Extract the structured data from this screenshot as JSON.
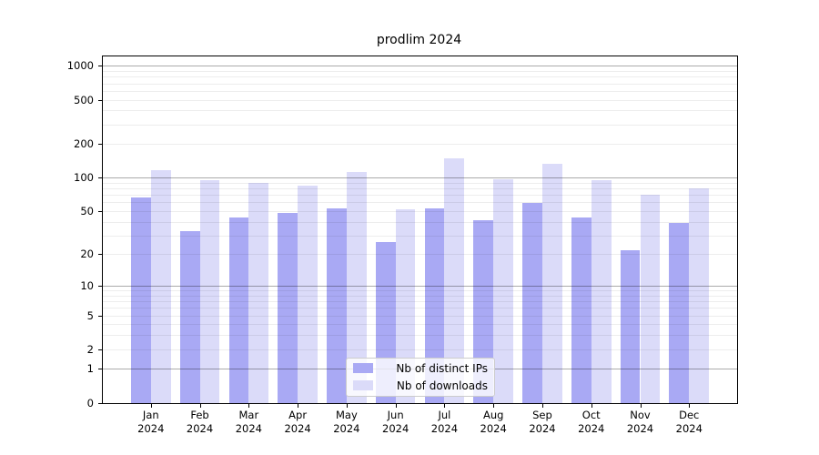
{
  "chart_data": {
    "type": "bar",
    "title": "prodlim 2024",
    "categories": [
      "Jan 2024",
      "Feb 2024",
      "Mar 2024",
      "Apr 2024",
      "May 2024",
      "Jun 2024",
      "Jul 2024",
      "Aug 2024",
      "Sep 2024",
      "Oct 2024",
      "Nov 2024",
      "Dec 2024"
    ],
    "series": [
      {
        "name": "Nb of distinct IPs",
        "color": "#a9a9f4",
        "values": [
          67,
          33,
          44,
          48,
          53,
          26,
          53,
          41,
          59,
          44,
          22,
          39
        ]
      },
      {
        "name": "Nb of downloads",
        "color": "#dbdbf9",
        "values": [
          116,
          96,
          90,
          85,
          112,
          52,
          150,
          97,
          133,
          95,
          70,
          81
        ]
      }
    ],
    "y_ticks": [
      0,
      1,
      2,
      5,
      10,
      20,
      50,
      100,
      200,
      500,
      1000
    ],
    "y_minor_gridlines": [
      2,
      3,
      4,
      5,
      6,
      7,
      8,
      9,
      20,
      30,
      40,
      50,
      60,
      70,
      80,
      90,
      200,
      300,
      400,
      500,
      600,
      700,
      800,
      900
    ],
    "y_major_gridlines": [
      1,
      10,
      100,
      1000
    ],
    "y_scale": "log10(value+1)",
    "ylim": [
      0,
      1265
    ],
    "xlabel": "",
    "ylabel": "",
    "grid": "horizontal major+minor, drawn over bars",
    "legend_position": "lower center"
  }
}
